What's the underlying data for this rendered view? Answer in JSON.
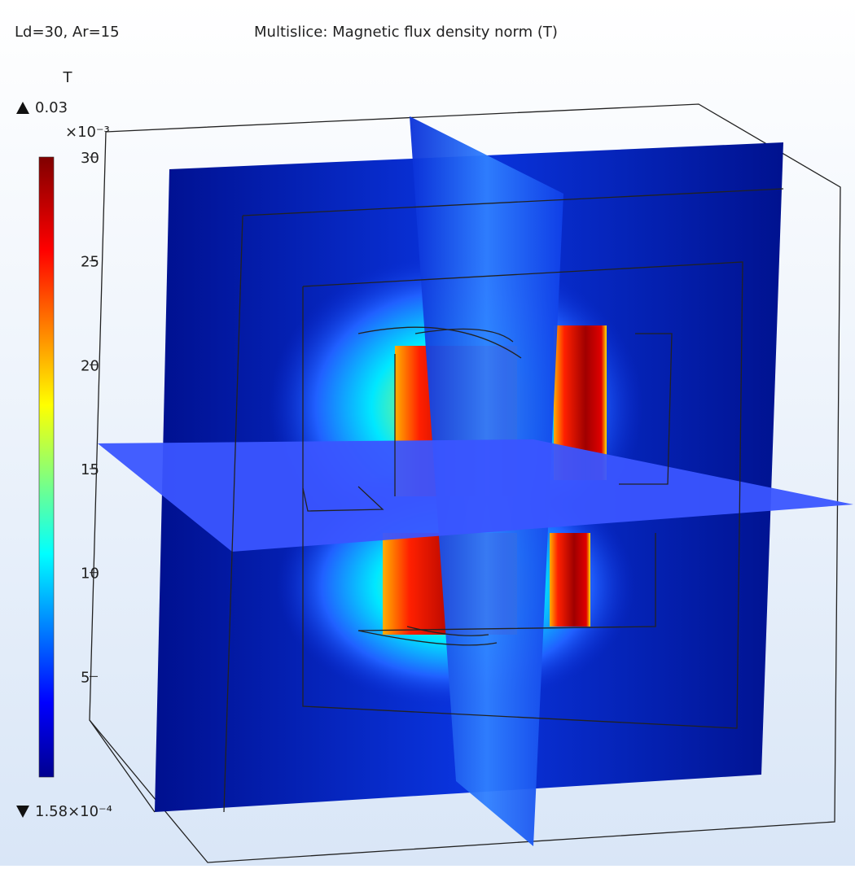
{
  "header": {
    "left": "Ld=30, Ar=15",
    "title": "Multislice: Magnetic flux density norm (T)"
  },
  "colorbar": {
    "unit": "T",
    "max_label": "0.03",
    "scale_label": "×10⁻³",
    "ticks": [
      30,
      25,
      20,
      15,
      10,
      5
    ],
    "min_label": "1.58×10⁻⁴",
    "lim": [
      0.158,
      30
    ]
  }
}
